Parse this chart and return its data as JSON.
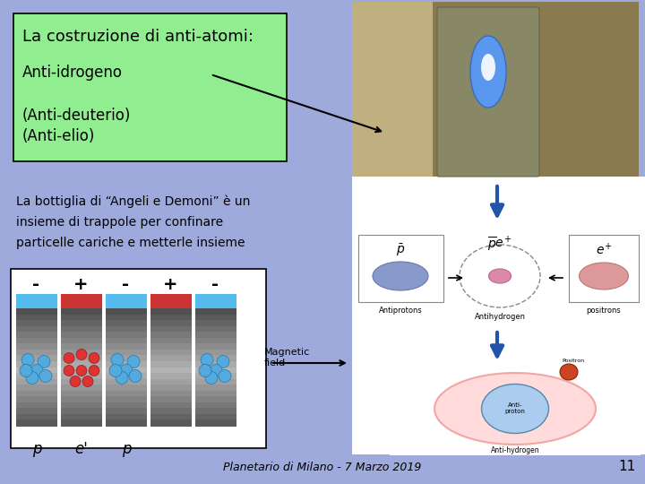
{
  "background_color": "#9eaadb",
  "text_box_bg": "#90ee90",
  "text_box_border": "#000000",
  "title_text": "La costruzione di anti-atomi:",
  "line1_text": "Anti-idrogeno",
  "line2_text": "(Anti-deuterio)",
  "line3_text": "(Anti-elio)",
  "body_text": "La bottiglia di “Angeli e Demoni” è un\ninsieme di trappole per confinare\nparticelle cariche e metterle insieme",
  "footer_text": "Planetario di Milano - 7 Marzo 2019",
  "page_number": "11",
  "font_size_box_title": 13,
  "font_size_box_body": 12,
  "font_size_body": 10,
  "font_size_footer": 9
}
